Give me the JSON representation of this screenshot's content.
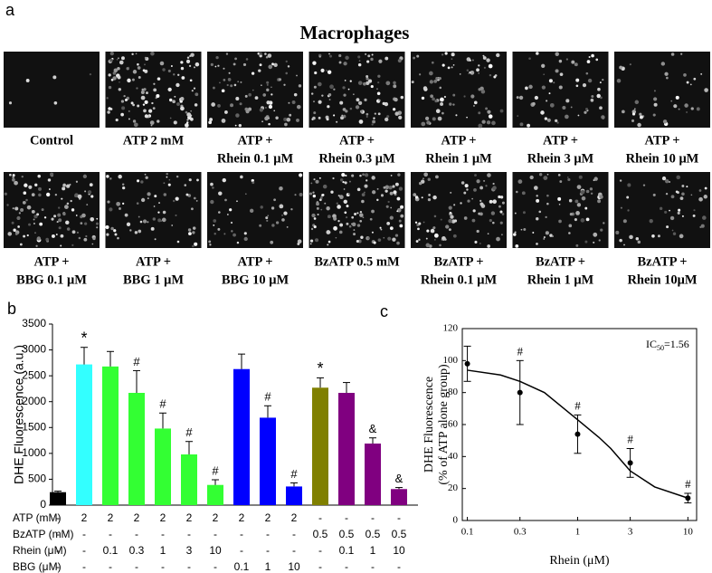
{
  "panel_a": {
    "panel": "a",
    "title": "Macrophages",
    "images": [
      {
        "label": [
          "Control"
        ]
      },
      {
        "label": [
          "ATP 2 mM"
        ]
      },
      {
        "label": [
          "ATP +",
          "Rhein 0.1 μM"
        ]
      },
      {
        "label": [
          "ATP +",
          "Rhein 0.3 μM"
        ]
      },
      {
        "label": [
          "ATP +",
          "Rhein 1 μM"
        ]
      },
      {
        "label": [
          "ATP +",
          "Rhein 3 μM"
        ]
      },
      {
        "label": [
          "ATP +",
          "Rhein 10 μM"
        ]
      },
      {
        "label": [
          "ATP +",
          "BBG 0.1 μM"
        ]
      },
      {
        "label": [
          "ATP +",
          "BBG 1 μM"
        ]
      },
      {
        "label": [
          "ATP +",
          "BBG 10 μM"
        ]
      },
      {
        "label": [
          "BzATP 0.5 mM"
        ]
      },
      {
        "label": [
          "BzATP +",
          "Rhein 0.1 μM"
        ]
      },
      {
        "label": [
          "BzATP +",
          "Rhein 1 μM"
        ]
      },
      {
        "label": [
          "BzATP +",
          "Rhein 10μM"
        ]
      }
    ]
  },
  "chart_data": [
    {
      "type": "bar",
      "panel": "b",
      "ylabel": "DHE Fluorescence (a.u.)",
      "values": [
        250,
        2720,
        2680,
        2170,
        1480,
        980,
        390,
        2630,
        1690,
        360,
        2270,
        2170,
        1190,
        310
      ],
      "errors": [
        20,
        330,
        290,
        430,
        300,
        250,
        100,
        290,
        230,
        70,
        190,
        200,
        110,
        30
      ],
      "markers": [
        null,
        "*",
        null,
        "#",
        "#",
        "#",
        "#",
        null,
        "#",
        "#",
        "*",
        null,
        "&",
        "&"
      ],
      "colors": [
        "#000000",
        "#33ffff",
        "#33ff33",
        "#33ff33",
        "#33ff33",
        "#33ff33",
        "#33ff33",
        "#0000ff",
        "#0000ff",
        "#0000ff",
        "#808000",
        "#800080",
        "#800080",
        "#800080"
      ],
      "ylim": [
        0,
        3500
      ],
      "yticks": [
        0,
        500,
        1000,
        1500,
        2000,
        2500,
        3000,
        3500
      ],
      "table": {
        "rows": [
          {
            "name": "ATP (mM)",
            "cells": [
              "-",
              "2",
              "2",
              "2",
              "2",
              "2",
              "2",
              "2",
              "2",
              "2",
              "-",
              "-",
              "-",
              "-"
            ]
          },
          {
            "name": "BzATP (mM)",
            "cells": [
              "-",
              "-",
              "-",
              "-",
              "-",
              "-",
              "-",
              "-",
              "-",
              "-",
              "0.5",
              "0.5",
              "0.5",
              "0.5"
            ]
          },
          {
            "name": "Rhein (μM)",
            "cells": [
              "-",
              "-",
              "0.1",
              "0.3",
              "1",
              "3",
              "10",
              "-",
              "-",
              "-",
              "-",
              "0.1",
              "1",
              "10"
            ]
          },
          {
            "name": "BBG (μM)",
            "cells": [
              "-",
              "-",
              "-",
              "-",
              "-",
              "-",
              "-",
              "0.1",
              "1",
              "10",
              "-",
              "-",
              "-",
              "-"
            ]
          }
        ]
      }
    },
    {
      "type": "line",
      "panel": "c",
      "ylabel": [
        "DHE Fluorescence",
        "(% of ATP alone group)"
      ],
      "xlabel": "Rhein (μM)",
      "annotation": {
        "main": "IC",
        "sub": "50",
        "rest": "=1.56"
      },
      "log_x": true,
      "xlim": [
        0.09,
        12
      ],
      "xticks": [
        0.1,
        0.3,
        1,
        3,
        10
      ],
      "ylim": [
        0,
        120
      ],
      "yticks": [
        0,
        20,
        40,
        60,
        80,
        100,
        120
      ],
      "series": [
        {
          "x": [
            0.1,
            0.3,
            1,
            3,
            10
          ],
          "values": [
            98,
            80,
            54,
            36,
            14
          ],
          "errors": [
            11,
            20,
            12,
            9,
            3
          ],
          "markers": [
            null,
            "#",
            "#",
            "#",
            "#"
          ],
          "color": "#000000"
        },
        {
          "x": [
            0.1,
            0.2,
            0.3,
            0.5,
            1,
            1.56,
            2,
            3,
            5,
            10
          ],
          "values": [
            94,
            91,
            87,
            80,
            63,
            52,
            45,
            31,
            21,
            14
          ],
          "color": "#000000"
        }
      ]
    }
  ]
}
